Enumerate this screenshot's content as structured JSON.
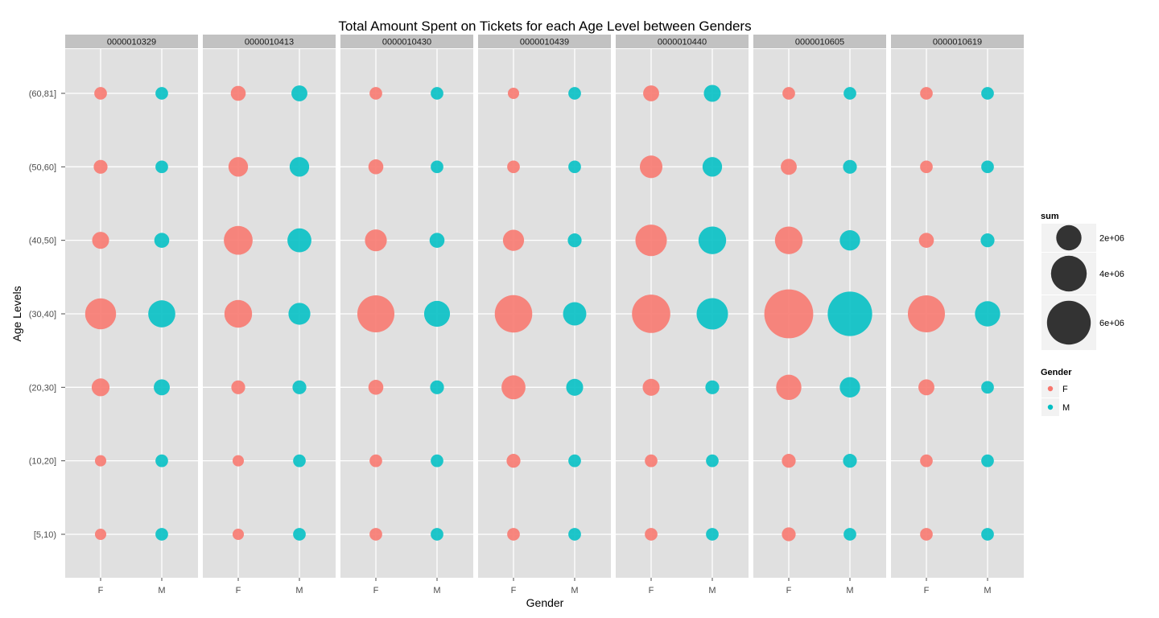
{
  "chart_data": {
    "type": "scatter",
    "title": "Total Amount Spent on Tickets for each Age Level between Genders",
    "xlabel": "Gender",
    "ylabel": "Age Levels",
    "x_categories": [
      "F",
      "M"
    ],
    "y_categories": [
      "[5,10)",
      "(10,20]",
      "(20,30]",
      "(30,40]",
      "(40,50]",
      "(50,60]",
      "(60,81]"
    ],
    "grid": true,
    "facets": [
      {
        "label": "0000010329",
        "F": [
          0.4,
          0.4,
          1.0,
          3.0,
          0.9,
          0.6,
          0.5
        ],
        "M": [
          0.5,
          0.5,
          0.8,
          2.3,
          0.7,
          0.5,
          0.5
        ]
      },
      {
        "label": "0000010413",
        "F": [
          0.4,
          0.4,
          0.6,
          2.4,
          2.6,
          1.2,
          0.7
        ],
        "M": [
          0.5,
          0.5,
          0.6,
          1.5,
          1.8,
          1.2,
          0.8
        ]
      },
      {
        "label": "0000010430",
        "F": [
          0.5,
          0.5,
          0.7,
          4.3,
          1.5,
          0.7,
          0.5
        ],
        "M": [
          0.5,
          0.5,
          0.6,
          2.1,
          0.7,
          0.5,
          0.5
        ]
      },
      {
        "label": "0000010439",
        "F": [
          0.5,
          0.6,
          1.8,
          4.4,
          1.4,
          0.5,
          0.4
        ],
        "M": [
          0.5,
          0.5,
          0.9,
          1.7,
          0.6,
          0.5,
          0.5
        ]
      },
      {
        "label": "0000010440",
        "F": [
          0.5,
          0.5,
          0.9,
          4.6,
          3.1,
          1.6,
          0.8
        ],
        "M": [
          0.5,
          0.5,
          0.6,
          3.1,
          2.4,
          1.2,
          0.9
        ]
      },
      {
        "label": "0000010605",
        "F": [
          0.6,
          0.6,
          2.0,
          7.5,
          2.4,
          0.8,
          0.5
        ],
        "M": [
          0.5,
          0.6,
          1.3,
          6.2,
          1.3,
          0.6,
          0.5
        ]
      },
      {
        "label": "0000010619",
        "F": [
          0.5,
          0.5,
          0.8,
          4.3,
          0.7,
          0.5,
          0.5
        ],
        "M": [
          0.5,
          0.5,
          0.5,
          2.0,
          0.6,
          0.5,
          0.5
        ]
      }
    ],
    "value_unit_multiplier": 1000000,
    "colors": {
      "F": "#F8766D",
      "M": "#00BFC4",
      "panel": "#E0E0E0",
      "strip": "#C2C2C2",
      "grid": "#ffffff",
      "legend_key": "#F2F2F2",
      "size_key": "#333333"
    },
    "legend_size": {
      "title": "sum",
      "entries": [
        {
          "label": "2e+06",
          "value": 2
        },
        {
          "label": "4e+06",
          "value": 4
        },
        {
          "label": "6e+06",
          "value": 6
        }
      ]
    },
    "legend_color": {
      "title": "Gender",
      "entries": [
        "F",
        "M"
      ]
    }
  }
}
